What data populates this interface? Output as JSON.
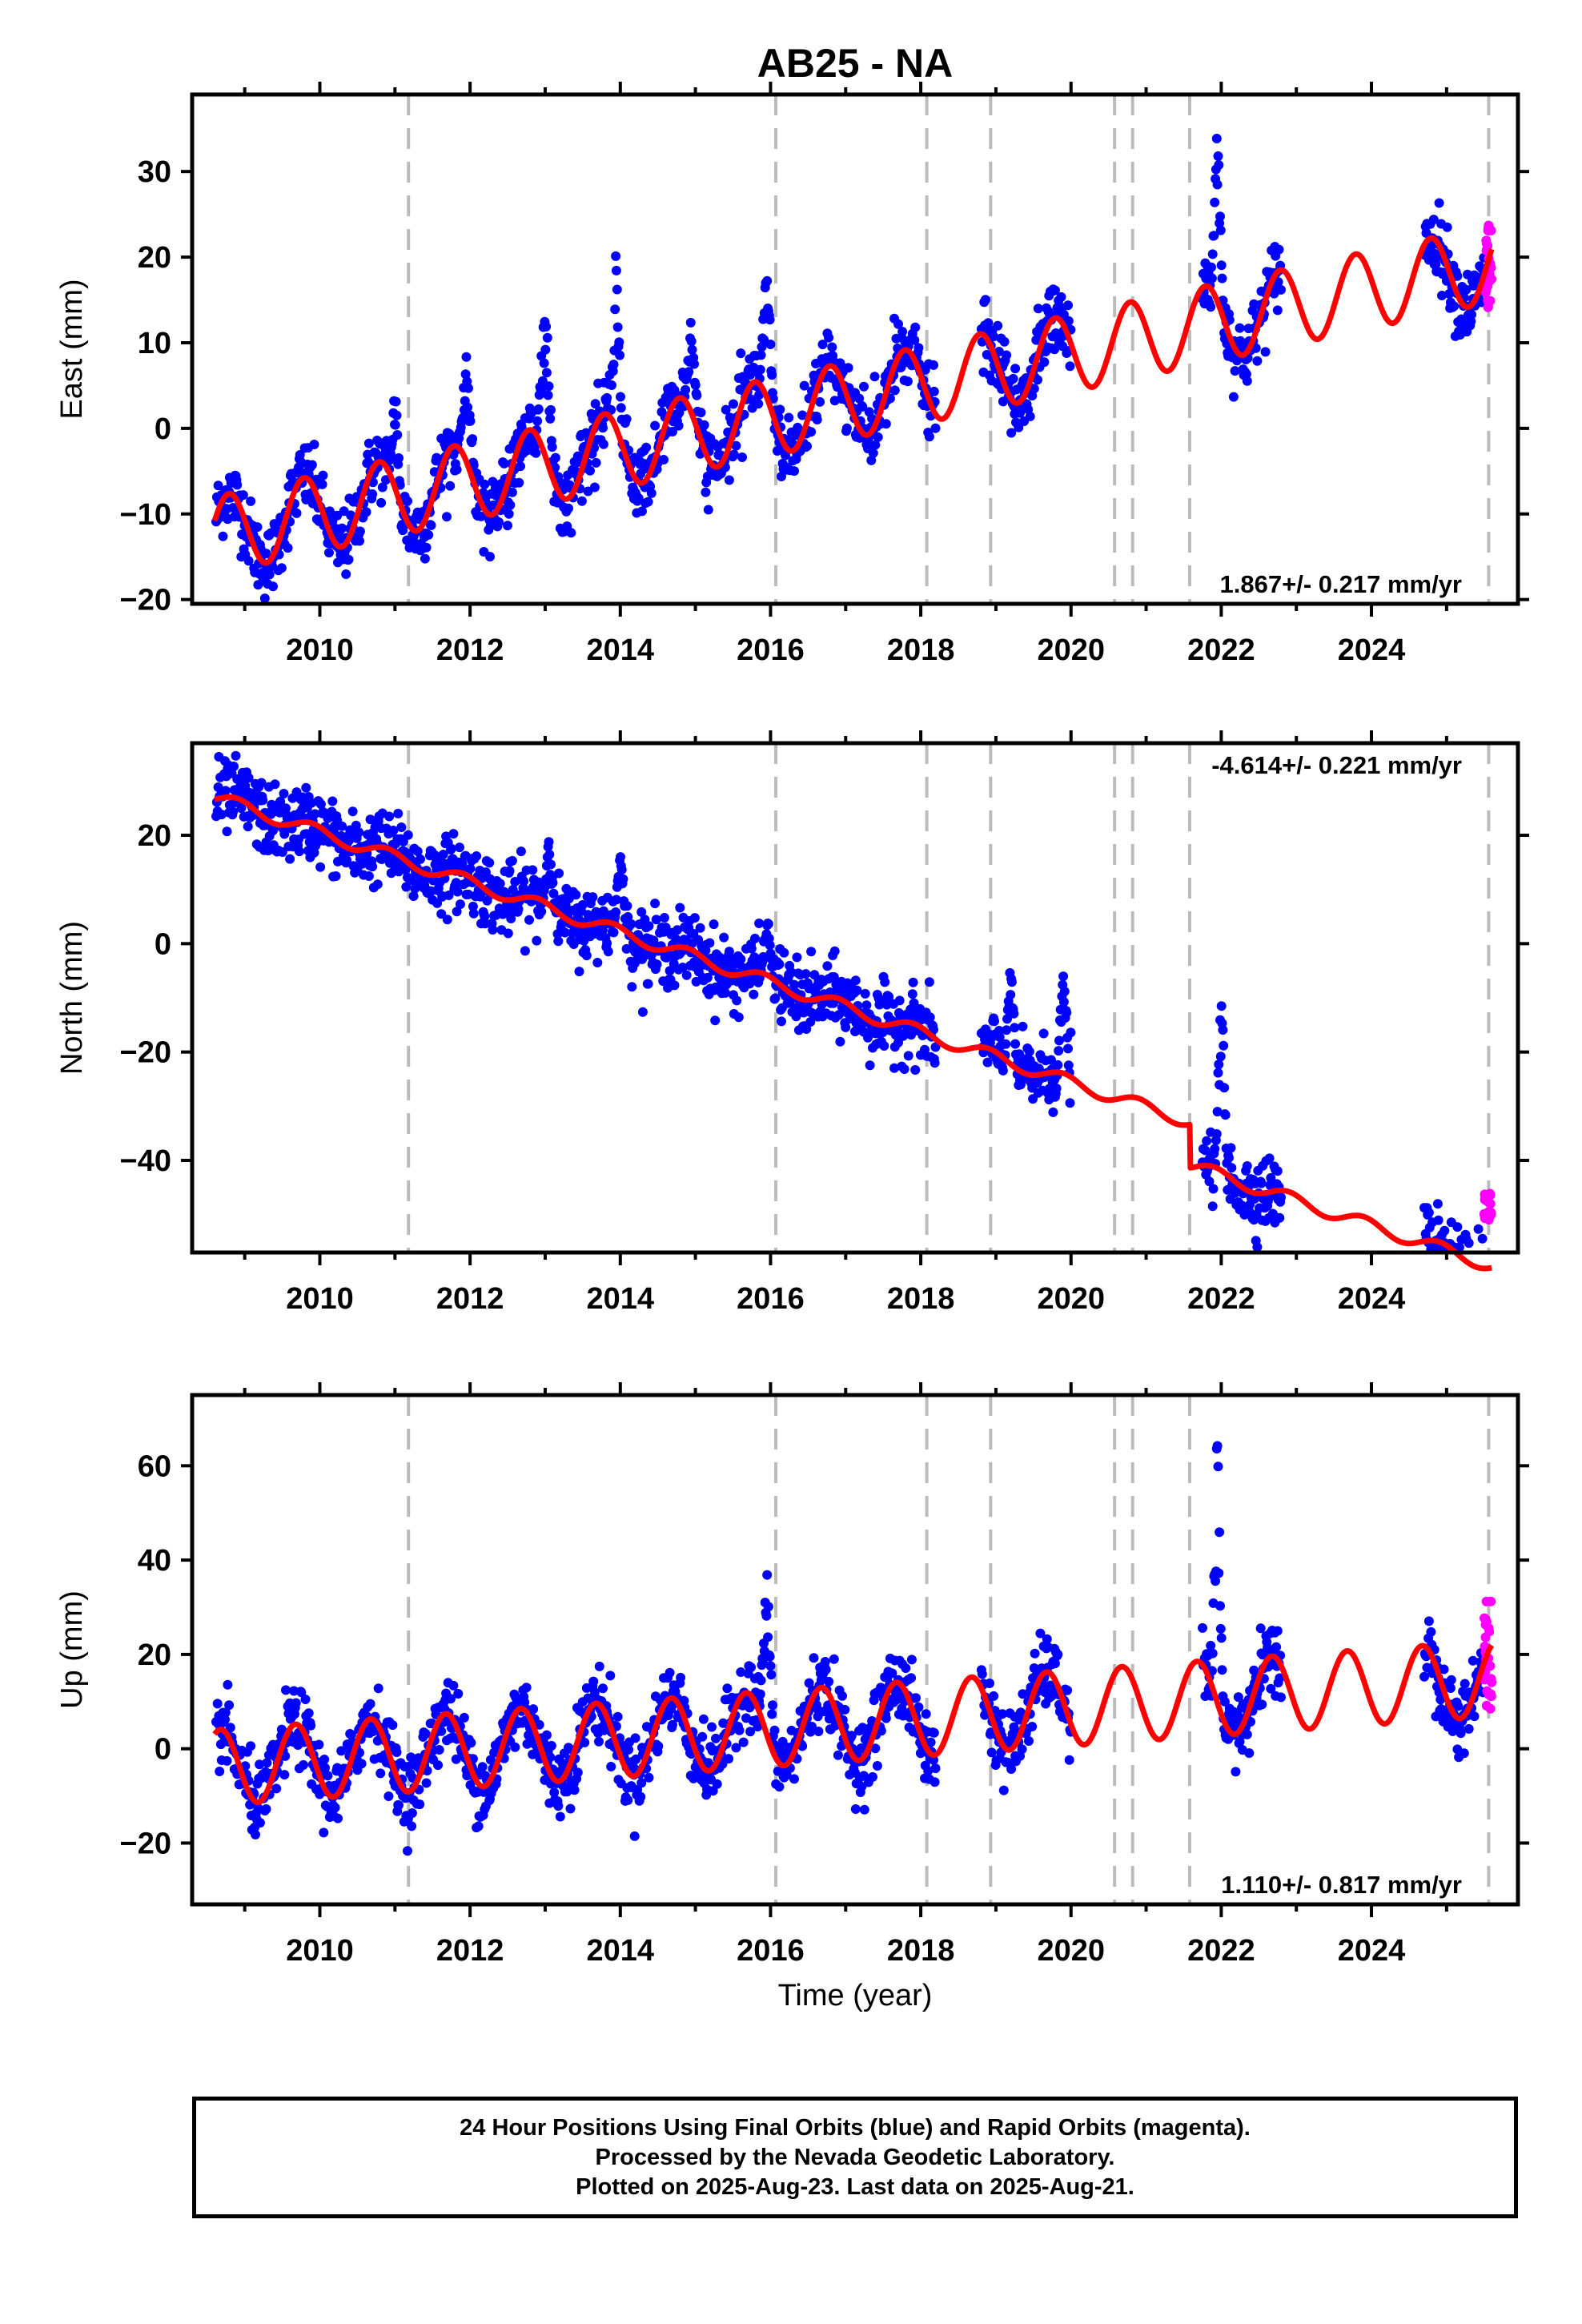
{
  "title": "AB25 - NA",
  "xlabel": "Time (year)",
  "x_ticks": [
    2010,
    2012,
    2014,
    2016,
    2018,
    2020,
    2022,
    2024
  ],
  "x_range": [
    2008.3,
    2025.95
  ],
  "event_lines": [
    2011.18,
    2016.07,
    2018.08,
    2018.93,
    2020.58,
    2020.82,
    2021.58,
    2025.56
  ],
  "colors": {
    "final_orbits": "#0000ff",
    "rapid_orbits": "#ff00ff",
    "model": "#ff0000",
    "event_line": "#bbbbbb",
    "axes": "#000000"
  },
  "chart_data": [
    {
      "type": "scatter",
      "component": "east",
      "ylabel": "East (mm)",
      "ylim": [
        -20.5,
        39
      ],
      "y_ticks": [
        -20,
        -10,
        0,
        10,
        20,
        30
      ],
      "rate_label": "1.867+/- 0.217 mm/yr",
      "rate_position": "bottom-right",
      "model": {
        "trend_rate": 1.867,
        "intercept_2008_6": -12.5,
        "seasonal_amplitude": 4.5,
        "phase": 2.9
      },
      "data_gaps": [
        [
          2018.2,
          2018.8
        ],
        [
          2020.0,
          2021.75
        ],
        [
          2022.8,
          2024.7
        ]
      ],
      "transients": [
        {
          "year": 2011.0,
          "peak": 6,
          "width": 0.08
        },
        {
          "year": 2011.95,
          "peak": 9,
          "width": 0.12
        },
        {
          "year": 2013.0,
          "peak": 17,
          "width": 0.12
        },
        {
          "year": 2013.95,
          "peak": 24,
          "width": 0.08
        },
        {
          "year": 2014.95,
          "peak": 14,
          "width": 0.1
        },
        {
          "year": 2015.95,
          "peak": 21,
          "width": 0.1
        },
        {
          "year": 2021.95,
          "peak": 38,
          "width": 0.08
        }
      ],
      "rapid_segment": {
        "x_range": [
          2025.5,
          2025.6
        ],
        "y_range": [
          14,
          24
        ]
      }
    },
    {
      "type": "scatter",
      "component": "north",
      "ylabel": "North (mm)",
      "ylim": [
        -57,
        37
      ],
      "y_ticks": [
        -40,
        -20,
        0,
        20
      ],
      "rate_label": "-4.614+/- 0.221 mm/yr",
      "rate_position": "top-right",
      "model": {
        "trend_rate": -4.614,
        "intercept_2008_6": 27,
        "seasonal_amplitude": 1.2,
        "phase": 2.2
      },
      "data_gaps": [
        [
          2018.2,
          2018.8
        ],
        [
          2020.0,
          2021.75
        ],
        [
          2022.8,
          2024.7
        ]
      ],
      "steps": [
        {
          "year": 2021.58,
          "offset": -8
        }
      ],
      "transients": [
        {
          "year": 2013.05,
          "peak": 20,
          "width": 0.08
        },
        {
          "year": 2014.0,
          "peak": 21,
          "width": 0.08
        },
        {
          "year": 2015.95,
          "peak": 8,
          "width": 0.08
        },
        {
          "year": 2019.2,
          "peak": 1,
          "width": 0.08
        },
        {
          "year": 2019.9,
          "peak": 1,
          "width": 0.08
        },
        {
          "year": 2022.0,
          "peak": -4,
          "width": 0.08
        }
      ],
      "rapid_segment": {
        "x_range": [
          2025.5,
          2025.6
        ],
        "y_range": [
          -51,
          -46
        ]
      }
    },
    {
      "type": "scatter",
      "component": "up",
      "ylabel": "Up (mm)",
      "ylim": [
        -33,
        75
      ],
      "y_ticks": [
        -20,
        0,
        20,
        40,
        60
      ],
      "rate_label": "1.110+/- 0.817 mm/yr",
      "rate_position": "bottom-right",
      "model": {
        "trend_rate": 1.11,
        "intercept_2008_6": -4,
        "seasonal_amplitude": 8,
        "phase": 3.6
      },
      "data_gaps": [
        [
          2018.2,
          2018.8
        ],
        [
          2020.0,
          2021.75
        ],
        [
          2022.8,
          2024.7
        ]
      ],
      "transients": [
        {
          "year": 2015.95,
          "peak": 42,
          "width": 0.1
        },
        {
          "year": 2021.95,
          "peak": 72,
          "width": 0.08
        }
      ],
      "rapid_segment": {
        "x_range": [
          2025.5,
          2025.6
        ],
        "y_range": [
          7,
          32
        ]
      }
    }
  ],
  "footer": {
    "line1": "24 Hour Positions Using Final Orbits (blue) and Rapid Orbits (magenta).",
    "line2": "Processed by the Nevada Geodetic Laboratory.",
    "line3": "Plotted on 2025-Aug-23. Last data on 2025-Aug-21."
  }
}
